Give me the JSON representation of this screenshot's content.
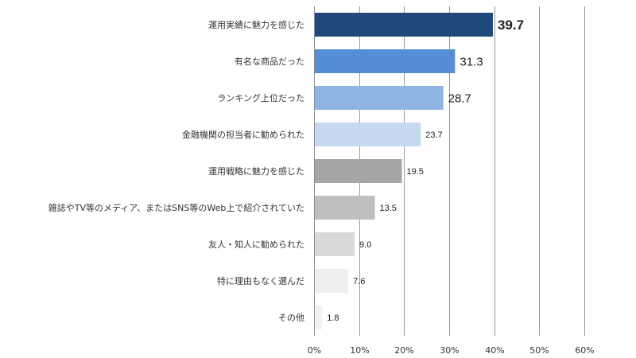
{
  "chart_data": {
    "type": "bar",
    "orientation": "horizontal",
    "title": "",
    "xlabel": "",
    "ylabel": "",
    "xlim": [
      0,
      60
    ],
    "x_ticks": [
      "0%",
      "10%",
      "20%",
      "30%",
      "40%",
      "50%",
      "60%"
    ],
    "grid": true,
    "categories": [
      "運用実績に魅力を感じた",
      "有名な商品だった",
      "ランキング上位だった",
      "金融機関の担当者に勧められた",
      "運用戦略に魅力を感じた",
      "雑誌やTV等のメディア、またはSNS等のWeb上で紹介されていた",
      "友人・知人に勧められた",
      "特に理由もなく選んだ",
      "その他"
    ],
    "values": [
      39.7,
      31.3,
      28.7,
      23.7,
      19.5,
      13.5,
      9.0,
      7.6,
      1.8
    ],
    "value_labels": [
      "39.7",
      "31.3",
      "28.7",
      "23.7",
      "19.5",
      "13.5",
      "9.0",
      "7.6",
      "1.8"
    ],
    "colors": [
      "#1f497d",
      "#558ed5",
      "#8eb4e3",
      "#c6d9f1",
      "#a6a6a6",
      "#bfbfbf",
      "#d9d9d9",
      "#eeeeee",
      "#f2f2f2"
    ]
  }
}
